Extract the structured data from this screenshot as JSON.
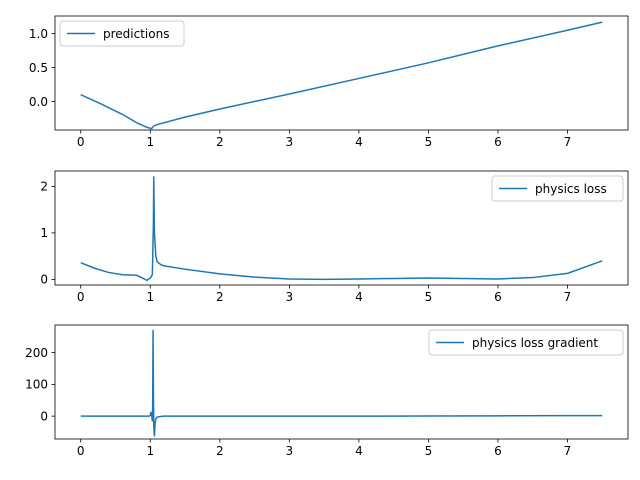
{
  "figure": {
    "background": "#ffffff",
    "line_color": "#1f77b4"
  },
  "chart_data": [
    {
      "type": "line",
      "title": "",
      "xlabel": "",
      "ylabel": "",
      "xlim": [
        -0.37,
        7.87
      ],
      "ylim": [
        -0.42,
        1.26
      ],
      "xticks": [
        0,
        1,
        2,
        3,
        4,
        5,
        6,
        7
      ],
      "xtick_labels": [
        "0",
        "1",
        "2",
        "3",
        "4",
        "5",
        "6",
        "7"
      ],
      "yticks": [
        0.0,
        0.5,
        1.0
      ],
      "ytick_labels": [
        "0.0",
        "0.5",
        "1.0"
      ],
      "legend_position": "upper-left",
      "grid": false,
      "series": [
        {
          "name": "predictions",
          "x": [
            0,
            0.3,
            0.6,
            0.8,
            0.95,
            1.02,
            1.05,
            1.1,
            1.5,
            2,
            3,
            4,
            5,
            6,
            7,
            7.5
          ],
          "y": [
            0.1,
            -0.04,
            -0.19,
            -0.31,
            -0.38,
            -0.4,
            -0.36,
            -0.34,
            -0.23,
            -0.11,
            0.11,
            0.34,
            0.57,
            0.82,
            1.05,
            1.17
          ]
        }
      ]
    },
    {
      "type": "line",
      "title": "",
      "xlabel": "",
      "ylabel": "",
      "xlim": [
        -0.37,
        7.87
      ],
      "ylim": [
        -0.12,
        2.33
      ],
      "xticks": [
        0,
        1,
        2,
        3,
        4,
        5,
        6,
        7
      ],
      "xtick_labels": [
        "0",
        "1",
        "2",
        "3",
        "4",
        "5",
        "6",
        "7"
      ],
      "yticks": [
        0,
        1,
        2
      ],
      "ytick_labels": [
        "0",
        "1",
        "2"
      ],
      "legend_position": "upper-right",
      "grid": false,
      "series": [
        {
          "name": "physics loss",
          "x": [
            0,
            0.2,
            0.4,
            0.6,
            0.8,
            0.9,
            0.95,
            1.0,
            1.03,
            1.045,
            1.05,
            1.06,
            1.08,
            1.1,
            1.15,
            1.2,
            1.5,
            2,
            2.5,
            3,
            3.5,
            4,
            4.5,
            5,
            5.5,
            6,
            6.5,
            7,
            7.5
          ],
          "y": [
            0.36,
            0.24,
            0.15,
            0.1,
            0.09,
            0.02,
            -0.02,
            0.03,
            0.1,
            1.2,
            2.2,
            1.0,
            0.5,
            0.38,
            0.32,
            0.29,
            0.22,
            0.12,
            0.05,
            0.01,
            0.0,
            0.01,
            0.02,
            0.03,
            0.02,
            0.01,
            0.04,
            0.13,
            0.4
          ]
        }
      ]
    },
    {
      "type": "line",
      "title": "",
      "xlabel": "",
      "ylabel": "",
      "xlim": [
        -0.37,
        7.87
      ],
      "ylim": [
        -72,
        287
      ],
      "xticks": [
        0,
        1,
        2,
        3,
        4,
        5,
        6,
        7
      ],
      "xtick_labels": [
        "0",
        "1",
        "2",
        "3",
        "4",
        "5",
        "6",
        "7"
      ],
      "yticks": [
        0,
        100,
        200
      ],
      "ytick_labels": [
        "0",
        "100",
        "200"
      ],
      "legend_position": "upper-right",
      "grid": false,
      "series": [
        {
          "name": "physics loss gradient",
          "x": [
            0,
            0.5,
            0.9,
            0.98,
            1.0,
            1.01,
            1.02,
            1.03,
            1.035,
            1.04,
            1.045,
            1.05,
            1.055,
            1.06,
            1.07,
            1.08,
            1.1,
            1.15,
            1.2,
            2,
            3,
            4,
            5,
            6,
            7,
            7.5
          ],
          "y": [
            0,
            0,
            0,
            0,
            2,
            12,
            3,
            -15,
            40,
            270,
            80,
            -30,
            -50,
            -62,
            -20,
            -8,
            -3,
            -1,
            0,
            0,
            0,
            0,
            0.5,
            1,
            1.5,
            1.5
          ]
        }
      ]
    }
  ]
}
